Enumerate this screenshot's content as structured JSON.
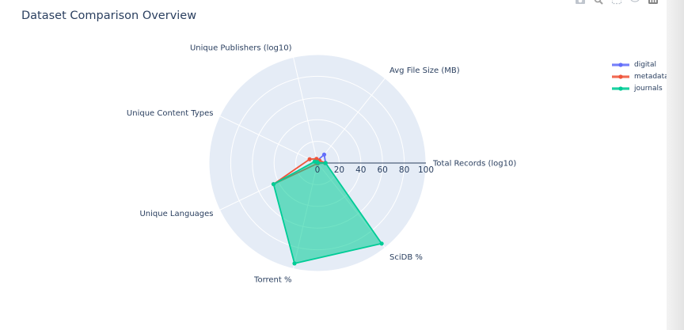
{
  "title": "Dataset Comparison Overview",
  "chart_data": {
    "type": "radar",
    "title": "Dataset Comparison Overview",
    "axes": [
      "Total Records (log10)",
      "Avg File Size (MB)",
      "Unique Publishers (log10)",
      "Unique Content Types",
      "Unique Languages",
      "Torrent %",
      "SciDB %"
    ],
    "radial_range": [
      0,
      100
    ],
    "radial_ticks": [
      "0",
      "20",
      "40",
      "60",
      "80",
      "100"
    ],
    "grid": true,
    "legend_position": "top-right",
    "series": [
      {
        "name": "digital",
        "color": "#636efa",
        "values": [
          7.5,
          10,
          2,
          1,
          0.5,
          0.5,
          0.5
        ]
      },
      {
        "name": "metadata",
        "color": "#ef553b",
        "values": [
          7,
          3,
          4,
          8,
          45,
          0.5,
          0.5
        ]
      },
      {
        "name": "journals",
        "color": "#00cc96",
        "fill": "rgba(0,204,150,0.55)",
        "values": [
          7.5,
          0.5,
          1,
          3,
          45,
          95,
          95
        ]
      }
    ]
  },
  "modebar": {
    "icons": [
      "camera-icon",
      "zoom-icon",
      "select-icon",
      "lasso-icon",
      "logo-icon"
    ]
  }
}
